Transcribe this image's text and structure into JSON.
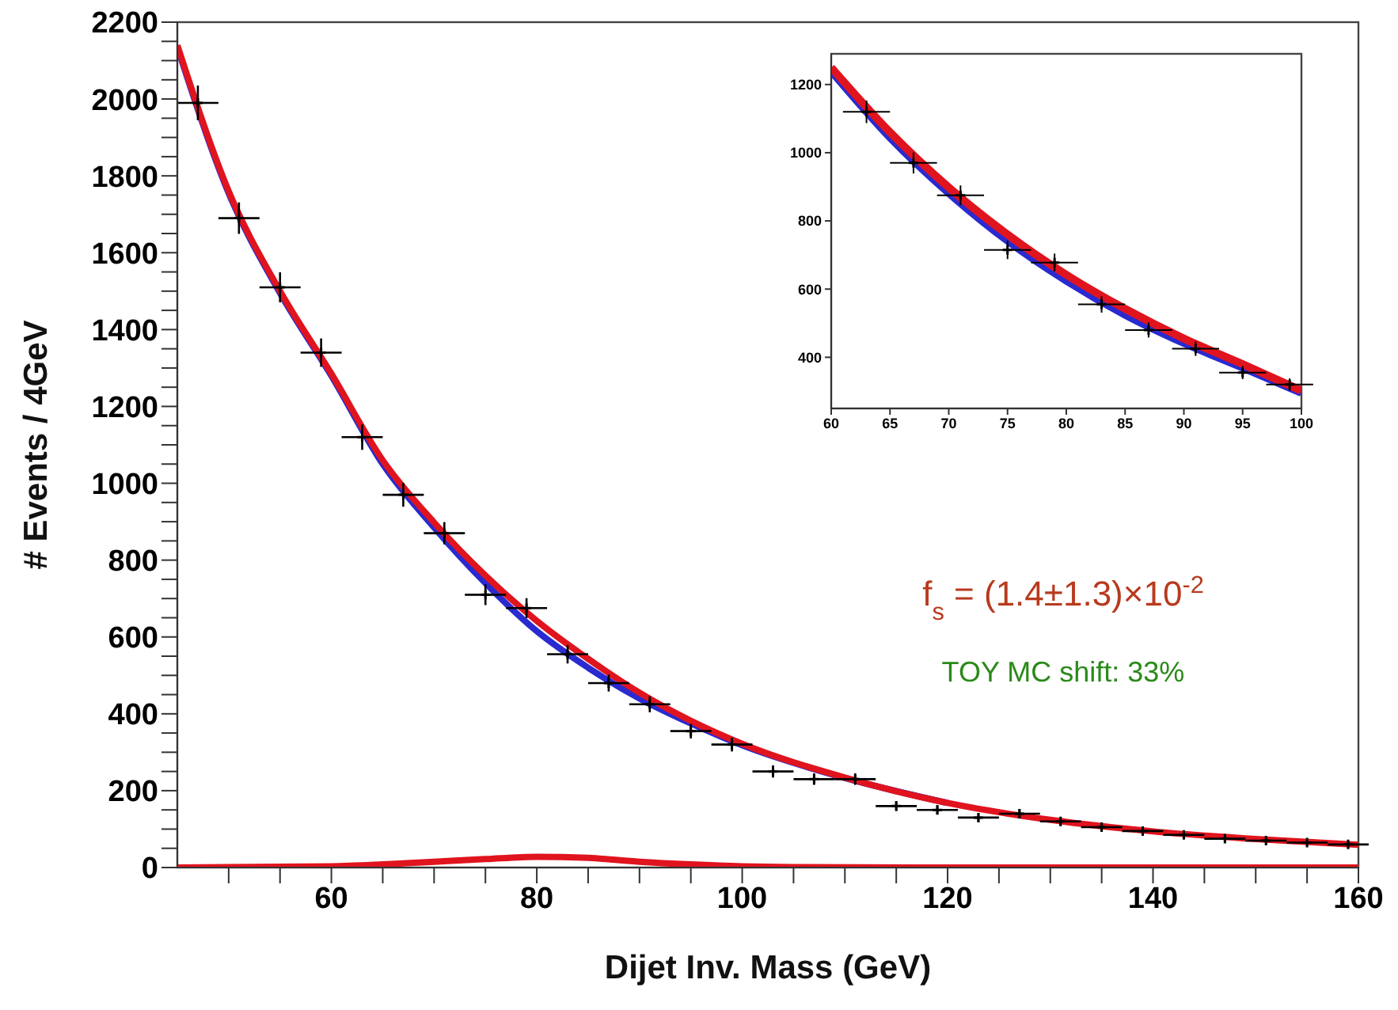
{
  "chart_data": [
    {
      "type": "scatter",
      "xlabel": "Dijet Inv. Mass (GeV)",
      "ylabel": "# Events / 4GeV",
      "annotations": [
        "f$_{s}$ = (1.4±1.3)×10$^{-2}$",
        "TOY MC shift: 33%"
      ],
      "xlim": [
        45,
        160
      ],
      "ylim": [
        0,
        2200
      ],
      "xticks": [
        {
          "value": 50,
          "label": null
        },
        {
          "value": 55,
          "label": null
        },
        60,
        {
          "value": 65,
          "label": null
        },
        {
          "value": 70,
          "label": null
        },
        {
          "value": 75,
          "label": null
        },
        80,
        {
          "value": 85,
          "label": null
        },
        {
          "value": 90,
          "label": null
        },
        {
          "value": 95,
          "label": null
        },
        100,
        {
          "value": 105,
          "label": null
        },
        {
          "value": 110,
          "label": null
        },
        {
          "value": 115,
          "label": null
        },
        120,
        {
          "value": 125,
          "label": null
        },
        {
          "value": 130,
          "label": null
        },
        {
          "value": 135,
          "label": null
        },
        140,
        {
          "value": 145,
          "label": null
        },
        {
          "value": 150,
          "label": null
        },
        {
          "value": 155,
          "label": null
        },
        160
      ],
      "yticks": [
        0,
        {
          "value": 50,
          "label": null
        },
        {
          "value": 100,
          "label": null
        },
        {
          "value": 150,
          "label": null
        },
        200,
        {
          "value": 250,
          "label": null
        },
        {
          "value": 300,
          "label": null
        },
        {
          "value": 350,
          "label": null
        },
        400,
        {
          "value": 450,
          "label": null
        },
        {
          "value": 500,
          "label": null
        },
        {
          "value": 550,
          "label": null
        },
        600,
        {
          "value": 650,
          "label": null
        },
        {
          "value": 700,
          "label": null
        },
        {
          "value": 750,
          "label": null
        },
        800,
        {
          "value": 850,
          "label": null
        },
        {
          "value": 900,
          "label": null
        },
        {
          "value": 950,
          "label": null
        },
        1000,
        {
          "value": 1050,
          "label": null
        },
        {
          "value": 1100,
          "label": null
        },
        {
          "value": 1150,
          "label": null
        },
        1200,
        {
          "value": 1250,
          "label": null
        },
        {
          "value": 1300,
          "label": null
        },
        {
          "value": 1350,
          "label": null
        },
        1400,
        {
          "value": 1450,
          "label": null
        },
        {
          "value": 1500,
          "label": null
        },
        {
          "value": 1550,
          "label": null
        },
        1600,
        {
          "value": 1650,
          "label": null
        },
        {
          "value": 1700,
          "label": null
        },
        {
          "value": 1750,
          "label": null
        },
        1800,
        {
          "value": 1850,
          "label": null
        },
        {
          "value": 1900,
          "label": null
        },
        {
          "value": 1950,
          "label": null
        },
        2000,
        {
          "value": 2050,
          "label": null
        },
        {
          "value": 2100,
          "label": null
        },
        {
          "value": 2150,
          "label": null
        },
        2200
      ],
      "grid": false,
      "legend": false,
      "series": [
        {
          "color": "#000000",
          "marker": "cross",
          "x": [
            47,
            51,
            55,
            59,
            63,
            67,
            71,
            75,
            79,
            83,
            87,
            91,
            95,
            99,
            103,
            107,
            111,
            115,
            119,
            123,
            127,
            131,
            135,
            139,
            143,
            147,
            151,
            155,
            159
          ],
          "values": [
            1990,
            1690,
            1510,
            1340,
            1120,
            970,
            870,
            710,
            675,
            555,
            480,
            425,
            355,
            320,
            250,
            230,
            230,
            160,
            150,
            130,
            140,
            120,
            105,
            95,
            85,
            75,
            70,
            65,
            60
          ],
          "errors": [
            45,
            41,
            39,
            37,
            33,
            31,
            29,
            27,
            26,
            24,
            22,
            21,
            19,
            18,
            16,
            15,
            15,
            13,
            12,
            11,
            12,
            11,
            10,
            10,
            9,
            9,
            8,
            8,
            8
          ],
          "xerrors": [
            2,
            2,
            2,
            2,
            2,
            2,
            2,
            2,
            2,
            2,
            2,
            2,
            2,
            2,
            2,
            2,
            2,
            2,
            2,
            2,
            2,
            2,
            2,
            2,
            2,
            2,
            2,
            2,
            2
          ]
        },
        {
          "type": "line",
          "color": "#2a2ad0",
          "x": [
            45,
            50,
            55,
            60,
            65,
            70,
            75,
            80,
            85,
            90,
            95,
            100,
            110,
            120
          ],
          "values": [
            2135,
            1755,
            1495,
            1280,
            1050,
            885,
            740,
            615,
            520,
            440,
            375,
            318,
            233,
            168
          ]
        },
        {
          "type": "line",
          "color": "#e0141e",
          "x": [
            45,
            50,
            55,
            60,
            65,
            70,
            75,
            80,
            85,
            90,
            95,
            100,
            110,
            120,
            130,
            140,
            150,
            160
          ],
          "values": [
            2140,
            1760,
            1500,
            1285,
            1060,
            898,
            760,
            642,
            543,
            455,
            382,
            322,
            234,
            168,
            124,
            94,
            74,
            59
          ]
        },
        {
          "type": "line",
          "color": "#e0141e",
          "x": [
            45,
            60,
            65,
            70,
            75,
            80,
            85,
            90,
            95,
            100,
            105,
            117,
            160
          ],
          "values": [
            0,
            3,
            8,
            15,
            22,
            28,
            25,
            15,
            8,
            3,
            1,
            0,
            0
          ]
        }
      ]
    },
    {
      "type": "scatter",
      "xlim": [
        60,
        100
      ],
      "ylim": [
        250,
        1290
      ],
      "xticks": [
        60,
        65,
        70,
        75,
        80,
        85,
        90,
        95,
        100
      ],
      "yticks": [
        400,
        600,
        800,
        1000,
        1200
      ],
      "grid": false,
      "legend": false,
      "series": [
        {
          "color": "#000000",
          "marker": "cross",
          "x": [
            63,
            67,
            71,
            75,
            79,
            83,
            87,
            91,
            95,
            99
          ],
          "values": [
            1120,
            970,
            875,
            715,
            678,
            555,
            480,
            425,
            355,
            320
          ],
          "errors": [
            33,
            31,
            29,
            27,
            26,
            24,
            22,
            21,
            19,
            18
          ],
          "xerrors": [
            2,
            2,
            2,
            2,
            2,
            2,
            2,
            2,
            2,
            2
          ]
        },
        {
          "type": "line",
          "color": "#2a2ad0",
          "x": [
            60,
            65,
            70,
            75,
            80,
            85,
            90,
            95,
            100
          ],
          "values": [
            1240,
            1045,
            882,
            742,
            625,
            525,
            442,
            370,
            296
          ]
        },
        {
          "type": "line",
          "color": "#e0141e",
          "x": [
            60,
            65,
            70,
            75,
            80,
            85,
            90,
            95,
            100
          ],
          "values": [
            1250,
            1060,
            898,
            760,
            642,
            542,
            455,
            380,
            302
          ]
        }
      ]
    }
  ]
}
